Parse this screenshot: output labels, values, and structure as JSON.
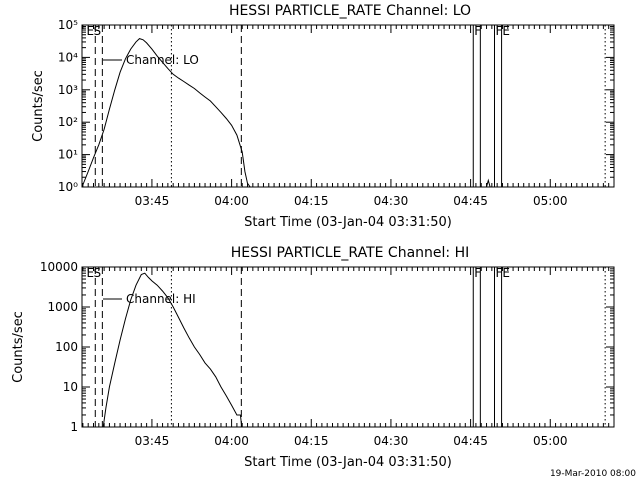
{
  "footer_stamp": "19-Mar-2010 08:00",
  "chart_data": [
    {
      "type": "line",
      "title": "HESSI PARTICLE_RATE Channel: LO",
      "xlabel": "Start Time (03-Jan-04 03:31:50)",
      "ylabel": "Counts/sec",
      "xlim": [
        "03:31:50",
        "05:12:00"
      ],
      "x_ticks": [
        "03:45",
        "04:00",
        "04:15",
        "04:30",
        "04:45",
        "05:00"
      ],
      "ylim": [
        1,
        100000
      ],
      "y_scale": "log",
      "y_ticks": [
        "10⁰",
        "10¹",
        "10²",
        "10³",
        "10⁴",
        "10⁵"
      ],
      "legend": "Channel: LO",
      "legend_placement": "top-left",
      "markers": [
        {
          "time": "03:34:20",
          "style": "dashed",
          "label": "E"
        },
        {
          "time": "03:35:40",
          "style": "dashed",
          "label": "S"
        },
        {
          "time": "03:48:40",
          "style": "dotted",
          "label": ""
        },
        {
          "time": "04:01:50",
          "style": "dashed",
          "label": ""
        },
        {
          "time": "05:10:20",
          "style": "dotted",
          "label": ""
        }
      ],
      "flags": [
        {
          "start": "04:45:30",
          "end": "04:46:50",
          "label": "F"
        },
        {
          "start": "04:49:30",
          "end": "04:50:50",
          "label": "FE"
        }
      ],
      "series": [
        {
          "name": "Channel: LO",
          "x": [
            "03:31:50",
            "03:33:00",
            "03:34:00",
            "03:35:00",
            "03:36:00",
            "03:37:00",
            "03:38:00",
            "03:39:00",
            "03:40:00",
            "03:41:00",
            "03:42:00",
            "03:42:40",
            "03:43:20",
            "03:44:00",
            "03:45:00",
            "03:46:00",
            "03:47:00",
            "03:48:00",
            "03:49:00",
            "03:50:00",
            "03:51:00",
            "03:52:00",
            "03:53:00",
            "03:54:00",
            "03:55:00",
            "03:56:00",
            "03:57:00",
            "03:58:00",
            "03:59:00",
            "04:00:00",
            "04:01:00",
            "04:02:00",
            "04:02:30",
            "04:03:00",
            "04:03:30"
          ],
          "values": [
            1,
            3,
            8,
            20,
            60,
            250,
            1000,
            3500,
            9000,
            18000,
            30000,
            38000,
            35000,
            28000,
            18000,
            11000,
            7000,
            4500,
            3000,
            2300,
            1800,
            1400,
            1100,
            800,
            600,
            450,
            300,
            200,
            130,
            80,
            40,
            12,
            3,
            1.3,
            1
          ]
        },
        {
          "name": "",
          "x": [
            "04:48:00",
            "04:48:20",
            "04:48:40"
          ],
          "values": [
            1,
            1.6,
            1
          ]
        }
      ]
    },
    {
      "type": "line",
      "title": "HESSI PARTICLE_RATE Channel: HI",
      "xlabel": "Start Time (03-Jan-04 03:31:50)",
      "ylabel": "Counts/sec",
      "xlim": [
        "03:31:50",
        "05:12:00"
      ],
      "x_ticks": [
        "03:45",
        "04:00",
        "04:15",
        "04:30",
        "04:45",
        "05:00"
      ],
      "ylim": [
        1,
        10000
      ],
      "y_scale": "log",
      "y_ticks": [
        "1",
        "10",
        "100",
        "1000",
        "10000"
      ],
      "legend": "Channel: HI",
      "legend_placement": "top-left",
      "markers": [
        {
          "time": "03:34:20",
          "style": "dashed",
          "label": "E"
        },
        {
          "time": "03:35:40",
          "style": "dashed",
          "label": "S"
        },
        {
          "time": "03:48:40",
          "style": "dotted",
          "label": ""
        },
        {
          "time": "04:01:50",
          "style": "dashed",
          "label": ""
        },
        {
          "time": "05:10:20",
          "style": "dotted",
          "label": ""
        }
      ],
      "flags": [
        {
          "start": "04:45:30",
          "end": "04:46:50",
          "label": "F"
        },
        {
          "start": "04:49:30",
          "end": "04:50:50",
          "label": "FE"
        }
      ],
      "series": [
        {
          "name": "Channel: HI",
          "x": [
            "03:35:50",
            "03:36:20",
            "03:37:00",
            "03:38:00",
            "03:39:00",
            "03:40:00",
            "03:41:00",
            "03:42:00",
            "03:43:00",
            "03:43:40",
            "03:44:20",
            "03:45:00",
            "03:46:00",
            "03:47:00",
            "03:48:00",
            "03:49:00",
            "03:50:00",
            "03:51:00",
            "03:52:00",
            "03:53:00",
            "03:54:00",
            "03:55:00",
            "03:56:00",
            "03:57:00",
            "03:58:00",
            "03:59:00",
            "04:00:00",
            "04:01:00",
            "04:01:40",
            "04:01:55"
          ],
          "values": [
            1,
            3,
            10,
            40,
            150,
            500,
            1500,
            3500,
            6500,
            7000,
            5500,
            4500,
            3500,
            2500,
            1700,
            1000,
            550,
            300,
            170,
            100,
            65,
            40,
            28,
            18,
            10,
            6,
            3.5,
            2,
            2,
            1
          ]
        }
      ]
    }
  ]
}
